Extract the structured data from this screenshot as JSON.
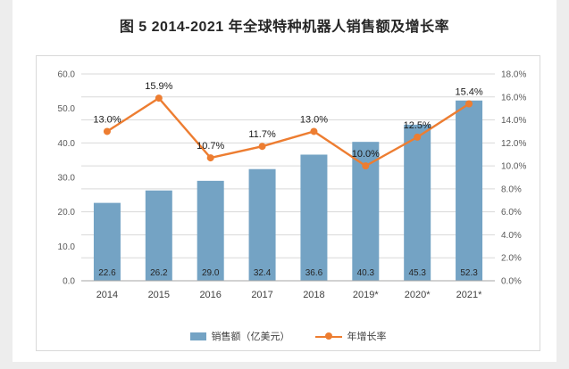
{
  "title": "图 5 2014-2021 年全球特种机器人销售额及增长率",
  "chart_data": {
    "type": "bar+line",
    "title": "图 5 2014-2021 年全球特种机器人销售额及增长率",
    "categories": [
      "2014",
      "2015",
      "2016",
      "2017",
      "2018",
      "2019*",
      "2020*",
      "2021*"
    ],
    "series": [
      {
        "name": "销售额（亿美元）",
        "type": "bar",
        "axis": "left",
        "color": "#74A3C4",
        "values": [
          22.6,
          26.2,
          29.0,
          32.4,
          36.6,
          40.3,
          45.3,
          52.3
        ],
        "value_labels": [
          "22.6",
          "26.2",
          "29.0",
          "32.4",
          "36.6",
          "40.3",
          "45.3",
          "52.3"
        ]
      },
      {
        "name": "年增长率",
        "type": "line",
        "axis": "right",
        "color": "#ED7D31",
        "values": [
          13.0,
          15.9,
          10.7,
          11.7,
          13.0,
          10.0,
          12.5,
          15.4
        ],
        "value_labels": [
          "13.0%",
          "15.9%",
          "10.7%",
          "11.7%",
          "13.0%",
          "10.0%",
          "12.5%",
          "15.4%"
        ]
      }
    ],
    "left_axis": {
      "min": 0,
      "max": 60,
      "step": 10,
      "tick_labels": [
        "0.0",
        "10.0",
        "20.0",
        "30.0",
        "40.0",
        "50.0",
        "60.0"
      ]
    },
    "right_axis": {
      "min": 0,
      "max": 18,
      "step": 2,
      "tick_labels": [
        "0.0%",
        "2.0%",
        "4.0%",
        "6.0%",
        "8.0%",
        "10.0%",
        "12.0%",
        "14.0%",
        "16.0%",
        "18.0%"
      ]
    },
    "grid": true,
    "legend_position": "bottom",
    "legend": [
      {
        "label": "销售额（亿美元）",
        "marker": "bar"
      },
      {
        "label": "年增长率",
        "marker": "line"
      }
    ]
  },
  "colors": {
    "bar": "#74A3C4",
    "line": "#ED7D31",
    "grid": "#d9d9d9",
    "axis": "#a6a6a6",
    "tick_text": "#595959",
    "label_text": "#1a1a1a"
  }
}
